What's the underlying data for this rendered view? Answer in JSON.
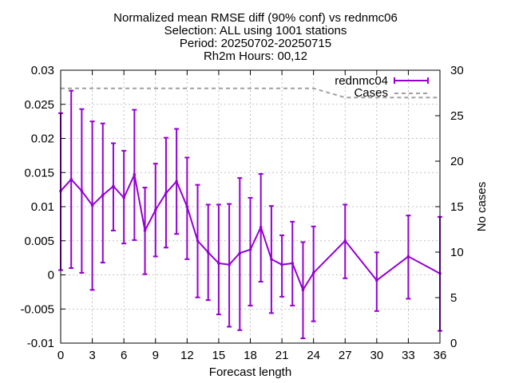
{
  "chart_data": {
    "type": "line",
    "title_lines": [
      "Normalized mean RMSE diff (90% conf) vs rednmc06",
      "Selection: ALL using  1001 stations",
      "Period: 20250702-20250715",
      "Rh2m   Hours: 00,12"
    ],
    "xlabel": "Forecast length",
    "ylabel": "",
    "y2label": "No cases",
    "xlim": [
      0,
      36
    ],
    "ylim": [
      -0.01,
      0.03
    ],
    "y2lim": [
      0,
      30
    ],
    "xticks": [
      "0",
      "3",
      "6",
      "9",
      "12",
      "15",
      "18",
      "21",
      "24",
      "27",
      "30",
      "33",
      "36"
    ],
    "yticks": [
      "-0.01",
      "-0.005",
      "0",
      "0.005",
      "0.01",
      "0.015",
      "0.02",
      "0.025",
      "0.03"
    ],
    "y2ticks": [
      "0",
      "5",
      "10",
      "15",
      "20",
      "25",
      "30"
    ],
    "grid": true,
    "legend_position": "top-right",
    "colors": {
      "rednmc04": "#9400d3",
      "cases": "#a0a0a0",
      "grid": "#b0b0b0"
    },
    "series": [
      {
        "name": "rednmc04",
        "axis": "y",
        "x": [
          0,
          1,
          2,
          3,
          4,
          5,
          6,
          7,
          8,
          9,
          10,
          11,
          12,
          13,
          14,
          15,
          16,
          17,
          18,
          19,
          20,
          21,
          22,
          23,
          24,
          27,
          30,
          33,
          36
        ],
        "y": [
          0.0123,
          0.014,
          0.0123,
          0.0102,
          0.0117,
          0.013,
          0.0113,
          0.0147,
          0.0065,
          0.0095,
          0.012,
          0.0137,
          0.01,
          0.005,
          0.0033,
          0.0017,
          0.0015,
          0.0032,
          0.0037,
          0.007,
          0.0023,
          0.0015,
          0.0017,
          -0.0022,
          0.0003,
          0.005,
          -0.0008,
          0.0027,
          0.0002
        ],
        "err_low": [
          0.0007,
          0.001,
          0.0003,
          -0.0022,
          0.0018,
          0.0065,
          0.0046,
          0.0051,
          0.0001,
          0.0027,
          0.004,
          0.006,
          0.0023,
          -0.0033,
          -0.0037,
          -0.0058,
          -0.0076,
          -0.0081,
          -0.0045,
          -0.001,
          -0.0056,
          -0.0032,
          -0.0045,
          -0.0093,
          -0.0068,
          -0.0005,
          -0.0053,
          -0.0035,
          -0.0082
        ],
        "err_high": [
          0.0237,
          0.027,
          0.0243,
          0.0225,
          0.0222,
          0.0193,
          0.0182,
          0.0242,
          0.0128,
          0.0163,
          0.0201,
          0.0214,
          0.0172,
          0.0132,
          0.0103,
          0.0103,
          0.0104,
          0.0142,
          0.0113,
          0.0148,
          0.0101,
          0.0058,
          0.0078,
          0.0048,
          0.0071,
          0.0103,
          0.0033,
          0.0087,
          0.0085
        ]
      },
      {
        "name": "Cases",
        "axis": "y2",
        "x": [
          0,
          24,
          27,
          30,
          33,
          36
        ],
        "y": [
          28,
          28,
          27,
          27,
          27,
          27
        ]
      }
    ]
  }
}
